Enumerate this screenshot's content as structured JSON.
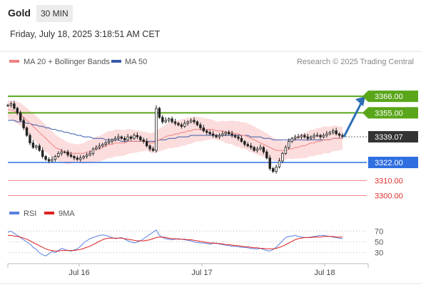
{
  "header": {
    "asset": "Gold",
    "interval": "30 MIN",
    "timestamp": "Friday, July 18, 2025 3:18:51 AM CET"
  },
  "colors": {
    "resistance": "#5aa61a",
    "support": "#2f6fe0",
    "pivot_line": "#2f6fe0",
    "target_line": "#f08a8a",
    "bollinger_fill": "#fbd7d7",
    "ma20": "#f08080",
    "ma50": "#3a5aa8",
    "candle": "#222222",
    "arrow": "#2f6fb5",
    "price_box": "#333333",
    "rsi": "#5a7fe0",
    "rsi_ma": "#e02020"
  },
  "chart_data": [
    {
      "type": "line",
      "title": "",
      "legend": [
        {
          "name": "MA 20 + Bollinger Bands",
          "color": "#f08080"
        },
        {
          "name": "MA 50",
          "color": "#3a5aa8"
        }
      ],
      "credit": "Research © 2025 Trading Central",
      "x_ticks": [
        "Jul 16",
        "Jul 17",
        "Jul 18"
      ],
      "ylim": [
        3295,
        3385
      ],
      "last_price": "3339.07",
      "levels": [
        {
          "label": "3366.00",
          "value": 3366,
          "kind": "resistance"
        },
        {
          "label": "3355.00",
          "value": 3355,
          "kind": "resistance"
        },
        {
          "label": "3322.00",
          "value": 3322,
          "kind": "pivot"
        },
        {
          "label": "3310.00",
          "value": 3310,
          "kind": "target"
        },
        {
          "label": "3300.00",
          "value": 3300,
          "kind": "target"
        }
      ],
      "forecast_arrow": {
        "from": 3339,
        "to": 3366
      },
      "series_close": [
        3360,
        3361,
        3358,
        3355,
        3350,
        3345,
        3340,
        3335,
        3332,
        3333,
        3330,
        3326,
        3324,
        3323,
        3324,
        3326,
        3328,
        3329,
        3329,
        3327,
        3326,
        3325,
        3324,
        3325,
        3326,
        3327,
        3328,
        3331,
        3332,
        3333,
        3334,
        3335,
        3336,
        3337,
        3338,
        3339,
        3338,
        3337,
        3339,
        3338,
        3340,
        3339,
        3337,
        3336,
        3333,
        3331,
        3330,
        3358,
        3352,
        3349,
        3350,
        3351,
        3349,
        3348,
        3347,
        3346,
        3348,
        3349,
        3350,
        3349,
        3347,
        3345,
        3343,
        3342,
        3341,
        3340,
        3339,
        3340,
        3341,
        3342,
        3341,
        3340,
        3339,
        3338,
        3336,
        3334,
        3333,
        3332,
        3330,
        3331,
        3332,
        3329,
        3325,
        3318,
        3316,
        3319,
        3323,
        3328,
        3332,
        3336,
        3338,
        3339,
        3339,
        3340,
        3339,
        3338,
        3339,
        3340,
        3340,
        3339,
        3340,
        3341,
        3342,
        3343,
        3341,
        3340,
        3339.07
      ],
      "ma20": [
        3357,
        3357,
        3356,
        3355,
        3354,
        3352,
        3350,
        3348,
        3346,
        3344,
        3342,
        3340,
        3338,
        3336,
        3334,
        3332,
        3331,
        3330,
        3329,
        3328,
        3328,
        3328,
        3328,
        3328,
        3328,
        3329,
        3329,
        3330,
        3331,
        3331,
        3332,
        3333,
        3334,
        3334,
        3335,
        3335,
        3335,
        3335,
        3336,
        3336,
        3336,
        3336,
        3336,
        3336,
        3336,
        3335,
        3335,
        3336,
        3337,
        3338,
        3339,
        3340,
        3340,
        3341,
        3341,
        3342,
        3342,
        3343,
        3343,
        3344,
        3344,
        3344,
        3344,
        3344,
        3344,
        3344,
        3343,
        3343,
        3343,
        3342,
        3342,
        3342,
        3341,
        3341,
        3340,
        3340,
        3339,
        3338,
        3337,
        3336,
        3335,
        3334,
        3333,
        3332,
        3331,
        3330,
        3330,
        3330,
        3330,
        3331,
        3331,
        3332,
        3332,
        3333,
        3333,
        3334,
        3335,
        3335,
        3336,
        3336,
        3337,
        3337,
        3337,
        3338,
        3338,
        3338,
        3338
      ],
      "ma50": [
        3350,
        3350,
        3350,
        3349,
        3349,
        3349,
        3348,
        3348,
        3347,
        3347,
        3346,
        3346,
        3345,
        3345,
        3344,
        3344,
        3343,
        3343,
        3342,
        3342,
        3341,
        3341,
        3340,
        3340,
        3339,
        3339,
        3339,
        3338,
        3338,
        3338,
        3338,
        3337,
        3337,
        3337,
        3337,
        3337,
        3336,
        3336,
        3336,
        3336,
        3336,
        3336,
        3336,
        3336,
        3336,
        3336,
        3336,
        3336,
        3337,
        3337,
        3337,
        3338,
        3338,
        3338,
        3339,
        3339,
        3339,
        3339,
        3340,
        3340,
        3340,
        3340,
        3340,
        3340,
        3340,
        3340,
        3340,
        3340,
        3340,
        3340,
        3340,
        3340,
        3340,
        3340,
        3340,
        3340,
        3340,
        3339,
        3339,
        3339,
        3339,
        3338,
        3338,
        3338,
        3337,
        3337,
        3337,
        3337,
        3337,
        3337,
        3337,
        3337,
        3337,
        3337,
        3337,
        3337,
        3337,
        3337,
        3337,
        3337,
        3337,
        3337,
        3337,
        3338,
        3338,
        3338,
        3338
      ]
    },
    {
      "type": "line",
      "title": "",
      "legend": [
        {
          "name": "RSI",
          "color": "#5a7fe0"
        },
        {
          "name": "9MA",
          "color": "#e02020"
        }
      ],
      "y_ticks": [
        "70",
        "50",
        "30"
      ],
      "ylim": [
        15,
        85
      ],
      "rsi": [
        68,
        70,
        66,
        62,
        58,
        54,
        50,
        46,
        40,
        36,
        30,
        26,
        24,
        28,
        32,
        30,
        34,
        38,
        36,
        34,
        33,
        35,
        37,
        42,
        48,
        52,
        56,
        58,
        60,
        62,
        63,
        62,
        60,
        58,
        56,
        57,
        58,
        55,
        52,
        50,
        48,
        50,
        52,
        56,
        60,
        64,
        68,
        72,
        62,
        58,
        56,
        55,
        54,
        55,
        56,
        55,
        54,
        53,
        52,
        50,
        49,
        48,
        48,
        47,
        46,
        47,
        48,
        46,
        45,
        44,
        43,
        42,
        42,
        41,
        40,
        40,
        39,
        38,
        37,
        37,
        38,
        36,
        34,
        33,
        36,
        40,
        46,
        52,
        58,
        60,
        61,
        62,
        60,
        59,
        58,
        58,
        59,
        60,
        61,
        62,
        62,
        61,
        60,
        59,
        58,
        57,
        56
      ],
      "rsi_ma": [
        62,
        62,
        61,
        60,
        59,
        57,
        55,
        52,
        49,
        46,
        43,
        40,
        37,
        35,
        34,
        33,
        33,
        34,
        34,
        34,
        34,
        34,
        35,
        36,
        38,
        40,
        42,
        45,
        48,
        51,
        54,
        56,
        57,
        57,
        57,
        57,
        57,
        56,
        55,
        54,
        53,
        52,
        52,
        52,
        53,
        54,
        56,
        58,
        59,
        59,
        58,
        57,
        56,
        56,
        55,
        55,
        55,
        54,
        54,
        53,
        52,
        51,
        50,
        49,
        48,
        48,
        47,
        47,
        46,
        45,
        45,
        44,
        43,
        43,
        42,
        41,
        41,
        40,
        39,
        39,
        38,
        38,
        37,
        37,
        37,
        38,
        40,
        42,
        45,
        48,
        51,
        54,
        56,
        57,
        58,
        58,
        58,
        59,
        59,
        59,
        60,
        60,
        60,
        60,
        59,
        59,
        59
      ]
    }
  ]
}
